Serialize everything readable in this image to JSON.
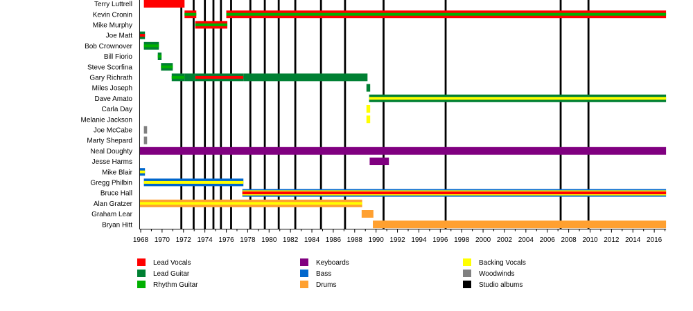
{
  "chart_data": {
    "type": "bar",
    "orientation": "horizontal-timeline",
    "title": "",
    "xlabel": "",
    "ylabel": "",
    "xlim": [
      1967.9,
      2017.1
    ],
    "grid": false,
    "x_ticks_major": [
      1968,
      1970,
      1972,
      1974,
      1976,
      1978,
      1980,
      1982,
      1984,
      1986,
      1988,
      1990,
      1992,
      1994,
      1996,
      1998,
      2000,
      2002,
      2004,
      2006,
      2008,
      2010,
      2012,
      2014,
      2016
    ],
    "x_tick_labels": [
      "1968",
      "1970",
      "1972",
      "1974",
      "1976",
      "1978",
      "1980",
      "1982",
      "1984",
      "1986",
      "1988",
      "1990",
      "1992",
      "1994",
      "1996",
      "1998",
      "2000",
      "2002",
      "2004",
      "2006",
      "2008",
      "2010",
      "2012",
      "2014",
      "2016"
    ],
    "x_ticks_minor_step": 1,
    "roles": {
      "lead_vocals": {
        "label": "Lead Vocals",
        "color": "#FF0000"
      },
      "lead_guitar": {
        "label": "Lead Guitar",
        "color": "#008033"
      },
      "rhythm_guitar": {
        "label": "Rhythm Guitar",
        "color": "#00B000"
      },
      "keyboards": {
        "label": "Keyboards",
        "color": "#800080"
      },
      "bass": {
        "label": "Bass",
        "color": "#0066CC"
      },
      "drums": {
        "label": "Drums",
        "color": "#FFA030"
      },
      "backing_vocals": {
        "label": "Backing Vocals",
        "color": "#FFFF00"
      },
      "woodwinds": {
        "label": "Woodwinds",
        "color": "#808080"
      },
      "studio_albums": {
        "label": "Studio albums",
        "color": "#000000"
      }
    },
    "legend_position": "bottom",
    "legend": [
      {
        "key": "lead_vocals",
        "label": "Lead Vocals",
        "color": "#FF0000"
      },
      {
        "key": "lead_guitar",
        "label": "Lead Guitar",
        "color": "#008033"
      },
      {
        "key": "rhythm_guitar",
        "label": "Rhythm Guitar",
        "color": "#00B000"
      },
      {
        "key": "keyboards",
        "label": "Keyboards",
        "color": "#800080"
      },
      {
        "key": "bass",
        "label": "Bass",
        "color": "#0066CC"
      },
      {
        "key": "drums",
        "label": "Drums",
        "color": "#FFA030"
      },
      {
        "key": "backing_vocals",
        "label": "Backing Vocals",
        "color": "#FFFF00"
      },
      {
        "key": "woodwinds",
        "label": "Woodwinds",
        "color": "#808080"
      },
      {
        "key": "studio_albums",
        "label": "Studio albums",
        "color": "#000000"
      }
    ],
    "studio_albums": [
      1971.8,
      1972.95,
      1974.0,
      1974.8,
      1975.5,
      1976.45,
      1978.25,
      1979.6,
      1980.9,
      1982.45,
      1984.85,
      1987.1,
      1990.7,
      1996.5,
      2007.25,
      2009.85
    ],
    "rows": [
      {
        "name": "Terry Luttrell",
        "periods": [
          {
            "start": 1968.3,
            "end": 1972.1,
            "roles": [
              "lead_vocals"
            ]
          }
        ]
      },
      {
        "name": "Kevin Cronin",
        "periods": [
          {
            "start": 1972.1,
            "end": 1973.2,
            "roles": [
              "lead_vocals",
              "rhythm_guitar"
            ]
          },
          {
            "start": 1976.0,
            "end": 2017.1,
            "roles": [
              "lead_vocals",
              "rhythm_guitar"
            ]
          }
        ]
      },
      {
        "name": "Mike Murphy",
        "periods": [
          {
            "start": 1973.1,
            "end": 1976.1,
            "roles": [
              "lead_vocals",
              "rhythm_guitar"
            ]
          }
        ]
      },
      {
        "name": "Joe Matt",
        "periods": [
          {
            "start": 1967.9,
            "end": 1968.4,
            "roles": [
              "lead_guitar",
              "lead_vocals"
            ]
          }
        ]
      },
      {
        "name": "Bob Crownover",
        "periods": [
          {
            "start": 1968.3,
            "end": 1969.7,
            "roles": [
              "lead_guitar",
              "rhythm_guitar"
            ]
          }
        ]
      },
      {
        "name": "Bill Fiorio",
        "periods": [
          {
            "start": 1969.6,
            "end": 1969.95,
            "roles": [
              "lead_guitar",
              "rhythm_guitar"
            ]
          }
        ]
      },
      {
        "name": "Steve Scorfina",
        "periods": [
          {
            "start": 1969.9,
            "end": 1971.0,
            "roles": [
              "lead_guitar",
              "rhythm_guitar"
            ]
          }
        ]
      },
      {
        "name": "Gary Richrath",
        "periods": [
          {
            "start": 1970.9,
            "end": 1972.1,
            "roles": [
              "lead_guitar",
              "rhythm_guitar"
            ]
          },
          {
            "start": 1972.1,
            "end": 1973.1,
            "roles": [
              "lead_guitar"
            ]
          },
          {
            "start": 1973.1,
            "end": 1977.6,
            "roles": [
              "lead_guitar",
              "lead_vocals"
            ]
          },
          {
            "start": 1977.6,
            "end": 1989.2,
            "roles": [
              "lead_guitar"
            ]
          }
        ]
      },
      {
        "name": "Miles Joseph",
        "periods": [
          {
            "start": 1989.1,
            "end": 1989.45,
            "roles": [
              "lead_guitar"
            ]
          }
        ]
      },
      {
        "name": "Dave Amato",
        "periods": [
          {
            "start": 1989.35,
            "end": 2017.1,
            "roles": [
              "lead_guitar",
              "backing_vocals"
            ]
          }
        ]
      },
      {
        "name": "Carla Day",
        "periods": [
          {
            "start": 1989.1,
            "end": 1989.45,
            "roles": [
              "backing_vocals"
            ]
          }
        ]
      },
      {
        "name": "Melanie Jackson",
        "periods": [
          {
            "start": 1989.1,
            "end": 1989.45,
            "roles": [
              "backing_vocals"
            ]
          }
        ]
      },
      {
        "name": "Joe McCabe",
        "periods": [
          {
            "start": 1968.3,
            "end": 1968.6,
            "roles": [
              "woodwinds"
            ]
          }
        ]
      },
      {
        "name": "Marty Shepard",
        "periods": [
          {
            "start": 1968.3,
            "end": 1968.6,
            "roles": [
              "woodwinds"
            ]
          }
        ]
      },
      {
        "name": "Neal Doughty",
        "periods": [
          {
            "start": 1967.9,
            "end": 2017.1,
            "roles": [
              "keyboards"
            ]
          }
        ]
      },
      {
        "name": "Jesse Harms",
        "periods": [
          {
            "start": 1989.4,
            "end": 1991.2,
            "roles": [
              "keyboards"
            ]
          }
        ]
      },
      {
        "name": "Mike Blair",
        "periods": [
          {
            "start": 1967.9,
            "end": 1968.4,
            "roles": [
              "bass",
              "backing_vocals"
            ]
          }
        ]
      },
      {
        "name": "Gregg Philbin",
        "periods": [
          {
            "start": 1968.3,
            "end": 1977.6,
            "roles": [
              "bass",
              "backing_vocals"
            ]
          }
        ]
      },
      {
        "name": "Bruce Hall",
        "periods": [
          {
            "start": 1977.5,
            "end": 2017.1,
            "roles": [
              "bass",
              "backing_vocals",
              "lead_vocals"
            ]
          }
        ]
      },
      {
        "name": "Alan Gratzer",
        "periods": [
          {
            "start": 1967.9,
            "end": 1988.7,
            "roles": [
              "drums",
              "backing_vocals"
            ]
          }
        ]
      },
      {
        "name": "Graham Lear",
        "periods": [
          {
            "start": 1988.65,
            "end": 1989.75,
            "roles": [
              "drums"
            ]
          }
        ]
      },
      {
        "name": "Bryan Hitt",
        "periods": [
          {
            "start": 1989.7,
            "end": 2017.1,
            "roles": [
              "drums"
            ]
          }
        ]
      }
    ]
  }
}
